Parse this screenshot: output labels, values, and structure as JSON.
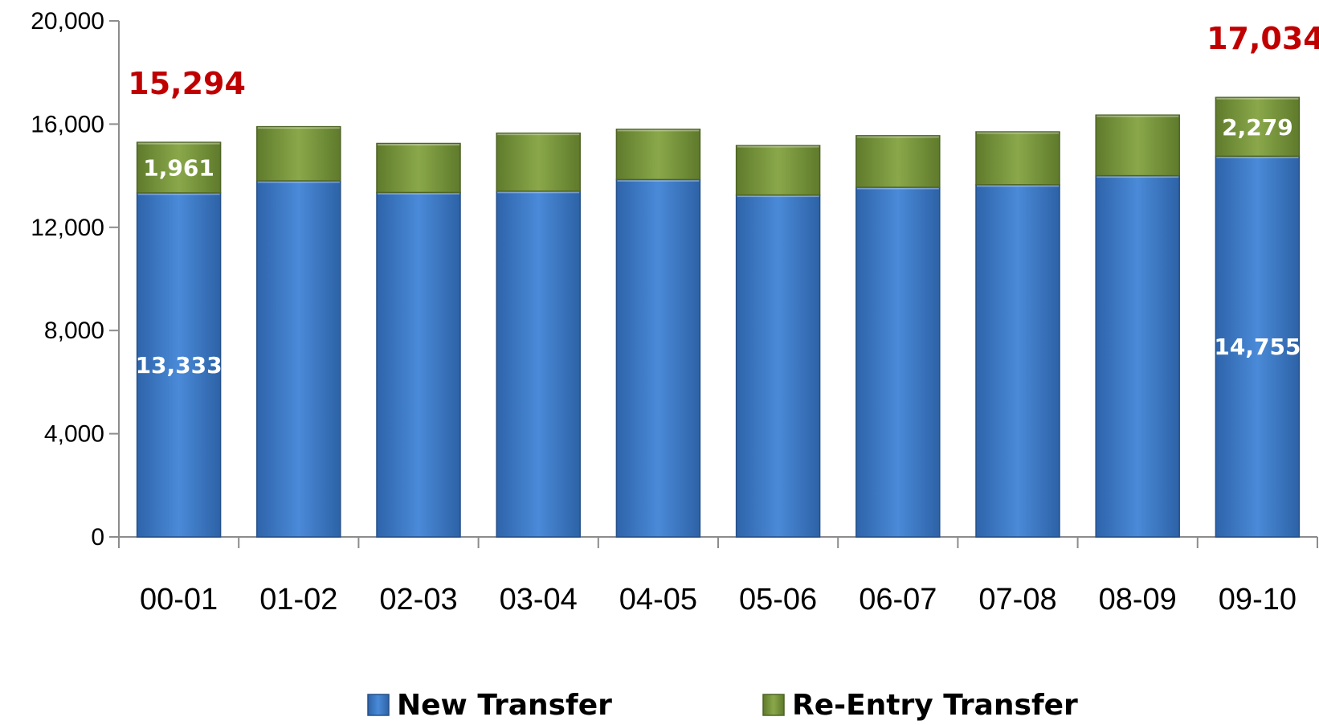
{
  "chart_data": {
    "type": "bar",
    "stacked": true,
    "categories": [
      "00-01",
      "01-02",
      "02-03",
      "03-04",
      "04-05",
      "05-06",
      "06-07",
      "07-08",
      "08-09",
      "09-10"
    ],
    "series": [
      {
        "name": "New Transfer",
        "color": "#3a78c8",
        "values": [
          13333,
          13800,
          13350,
          13400,
          13850,
          13250,
          13550,
          13650,
          14000,
          14755
        ]
      },
      {
        "name": "Re-Entry Transfer",
        "color": "#77933c",
        "values": [
          1961,
          2100,
          1900,
          2250,
          1950,
          1920,
          2000,
          2050,
          2350,
          2279
        ]
      }
    ],
    "ylim": [
      0,
      20000
    ],
    "yticks": [
      "0",
      "4,000",
      "8,000",
      "12,000",
      "16,000",
      "20,000"
    ],
    "ytick_values": [
      0,
      4000,
      8000,
      12000,
      16000,
      20000
    ],
    "grid": false,
    "legend": "bottom",
    "data_labels": [
      {
        "category": "00-01",
        "series": "New Transfer",
        "text": "13,333"
      },
      {
        "category": "00-01",
        "series": "Re-Entry Transfer",
        "text": "1,961"
      },
      {
        "category": "09-10",
        "series": "New Transfer",
        "text": "14,755"
      },
      {
        "category": "09-10",
        "series": "Re-Entry Transfer",
        "text": "2,279"
      }
    ],
    "totals": [
      {
        "category": "00-01",
        "text": "15,294"
      },
      {
        "category": "09-10",
        "text": "17,034"
      }
    ],
    "total_color": "#c00000"
  }
}
